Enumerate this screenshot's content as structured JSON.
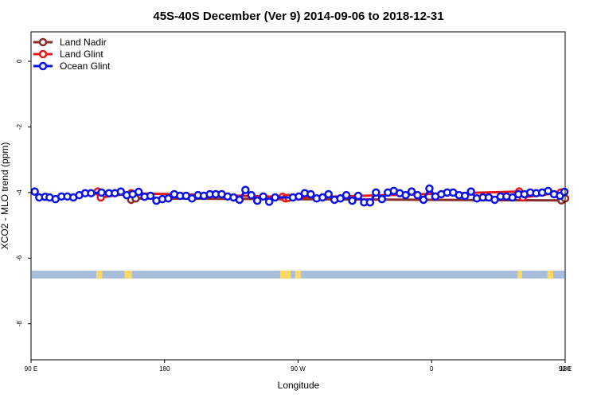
{
  "chart_data": {
    "type": "line",
    "title": "45S-40S December (Ver 9)   2014-09-06 to 2018-12-31",
    "xlabel": "Longitude",
    "ylabel": "XCO2 - MLO trend (ppm)",
    "xlim": [
      90,
      450
    ],
    "ylim": [
      -9.1,
      0.9
    ],
    "x_ticks": [
      {
        "value": 90,
        "label": "90 E"
      },
      {
        "value": 180,
        "label": "180"
      },
      {
        "value": 270,
        "label": "90 W"
      },
      {
        "value": 360,
        "label": "0"
      },
      {
        "value": 450,
        "label": "90 E"
      },
      {
        "value": 540,
        "label": "180"
      }
    ],
    "y_ticks": [
      {
        "value": 0,
        "label": "0"
      },
      {
        "value": -2,
        "label": "-2"
      },
      {
        "value": -4,
        "label": "-4"
      },
      {
        "value": -6,
        "label": "-6"
      },
      {
        "value": -8,
        "label": "-8"
      }
    ],
    "legend_position": "top-left",
    "land_band": {
      "y_range": [
        -6.62,
        -6.38
      ],
      "ocean_color": "#a6bddb",
      "land_color": "#fdd867",
      "land_lon_spans": [
        [
          134,
          138
        ],
        [
          153,
          158
        ],
        [
          258,
          265
        ],
        [
          268,
          272
        ],
        [
          418,
          421
        ],
        [
          438,
          442
        ]
      ]
    },
    "series": [
      {
        "name": "Land Nadir",
        "color": "#8b2a2a",
        "points": [
          [
            157.5,
            -4.22
          ],
          [
            160.5,
            -4.18
          ],
          [
            447.5,
            -4.24
          ],
          [
            450,
            -4.18
          ]
        ]
      },
      {
        "name": "Land Glint",
        "color": "#e8161b",
        "points": [
          [
            135,
            -3.97
          ],
          [
            137,
            -4.15
          ],
          [
            157.5,
            -4.02
          ],
          [
            259.5,
            -4.13
          ],
          [
            261.5,
            -4.18
          ],
          [
            263.5,
            -4.16
          ],
          [
            419,
            -3.97
          ],
          [
            421.5,
            -4.15
          ],
          [
            447,
            -4.0
          ]
        ]
      },
      {
        "name": "Ocean Glint",
        "color": "#0a12e8",
        "points": [
          [
            92.5,
            -3.97
          ],
          [
            95.5,
            -4.15
          ],
          [
            99.5,
            -4.13
          ],
          [
            102.5,
            -4.15
          ],
          [
            106.5,
            -4.2
          ],
          [
            110.5,
            -4.12
          ],
          [
            114.5,
            -4.12
          ],
          [
            118.5,
            -4.15
          ],
          [
            122.5,
            -4.08
          ],
          [
            126.5,
            -4.02
          ],
          [
            130.5,
            -4.02
          ],
          [
            137.5,
            -4.0
          ],
          [
            142.5,
            -4.02
          ],
          [
            146.5,
            -4.02
          ],
          [
            150.5,
            -3.97
          ],
          [
            154.5,
            -4.08
          ],
          [
            158.5,
            -4.05
          ],
          [
            162.5,
            -3.98
          ],
          [
            166.5,
            -4.13
          ],
          [
            170.5,
            -4.1
          ],
          [
            174.5,
            -4.25
          ],
          [
            178.5,
            -4.2
          ],
          [
            182.5,
            -4.18
          ],
          [
            186.5,
            -4.05
          ],
          [
            190.5,
            -4.1
          ],
          [
            194.5,
            -4.1
          ],
          [
            198.5,
            -4.18
          ],
          [
            202.5,
            -4.08
          ],
          [
            206.5,
            -4.1
          ],
          [
            210.5,
            -4.05
          ],
          [
            214.5,
            -4.05
          ],
          [
            218.5,
            -4.05
          ],
          [
            222.5,
            -4.12
          ],
          [
            226.5,
            -4.15
          ],
          [
            230.5,
            -4.22
          ],
          [
            234.5,
            -3.92
          ],
          [
            238.5,
            -4.08
          ],
          [
            242.5,
            -4.25
          ],
          [
            246.5,
            -4.12
          ],
          [
            250.5,
            -4.28
          ],
          [
            254.5,
            -4.15
          ],
          [
            266.5,
            -4.15
          ],
          [
            270.5,
            -4.12
          ],
          [
            274.5,
            -4.02
          ],
          [
            278.5,
            -4.05
          ],
          [
            282.5,
            -4.18
          ],
          [
            286.5,
            -4.15
          ],
          [
            290.5,
            -4.05
          ],
          [
            294.5,
            -4.22
          ],
          [
            298.5,
            -4.18
          ],
          [
            302.5,
            -4.08
          ],
          [
            306.5,
            -4.25
          ],
          [
            310.5,
            -4.1
          ],
          [
            314.5,
            -4.3
          ],
          [
            318.5,
            -4.3
          ],
          [
            322.5,
            -4.0
          ],
          [
            326.5,
            -4.2
          ],
          [
            330.5,
            -4.0
          ],
          [
            334.5,
            -3.95
          ],
          [
            338.5,
            -4.02
          ],
          [
            342.5,
            -4.08
          ],
          [
            346.5,
            -3.97
          ],
          [
            350.5,
            -4.08
          ],
          [
            354.5,
            -4.22
          ],
          [
            358.5,
            -3.88
          ],
          [
            362.5,
            -4.12
          ],
          [
            366.5,
            -4.05
          ],
          [
            370.5,
            -4.0
          ],
          [
            374.5,
            -4.0
          ],
          [
            378.5,
            -4.08
          ],
          [
            382.5,
            -4.1
          ],
          [
            386.5,
            -3.97
          ],
          [
            390.5,
            -4.18
          ],
          [
            394.5,
            -4.15
          ],
          [
            398.5,
            -4.15
          ],
          [
            402.5,
            -4.22
          ],
          [
            406.5,
            -4.12
          ],
          [
            410.5,
            -4.12
          ],
          [
            414.5,
            -4.15
          ],
          [
            418.5,
            -4.05
          ],
          [
            422.5,
            -4.05
          ],
          [
            426.5,
            -4.0
          ],
          [
            430.5,
            -4.02
          ],
          [
            434.5,
            -4.0
          ],
          [
            438.5,
            -3.95
          ],
          [
            442.5,
            -4.05
          ],
          [
            446.5,
            -4.1
          ],
          [
            449.5,
            -3.98
          ]
        ]
      }
    ]
  }
}
